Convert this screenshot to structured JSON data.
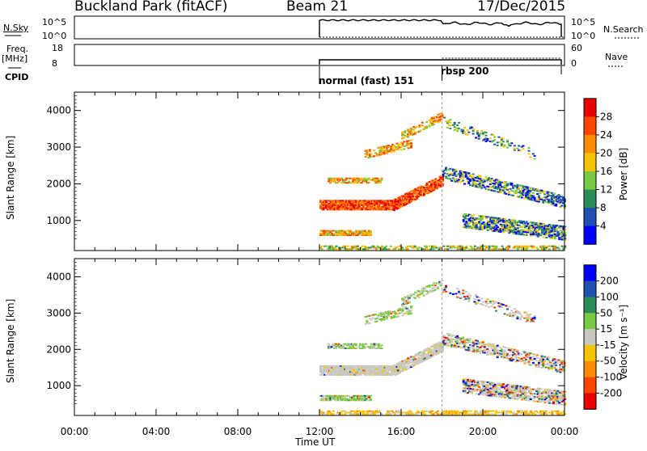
{
  "header": {
    "station": "Buckland Park (fitACF)",
    "beam": "Beam 21",
    "date": "17/Dec/2015"
  },
  "top_panels": {
    "nsky_label": "N.Sky",
    "nsky_ticks": [
      "10^5",
      "10^0"
    ],
    "nsearch_label": "N.Search",
    "nsearch_ticks": [
      "10^5",
      "10^0"
    ],
    "freq_label": "Freq.",
    "freq_unit": "[MHz]",
    "freq_ticks": [
      "18",
      "8"
    ],
    "nave_label": "Nave",
    "nave_ticks": [
      "60",
      "0"
    ],
    "cpid_label": "CPID",
    "cpid_modes": [
      {
        "name": "normal (fast) 151",
        "start_hour": 12.0
      },
      {
        "name": "rbsp 200",
        "start_hour": 18.0
      }
    ]
  },
  "chart_data": [
    {
      "type": "heatmap",
      "name": "Power",
      "ylabel": "Slant Range [km]",
      "xlabel": "",
      "xlim_hours": [
        0,
        24
      ],
      "ylim": [
        180,
        4500
      ],
      "ytick_labels": [
        "1000",
        "2000",
        "3000",
        "4000"
      ],
      "colorbar_label": "Power [dB]",
      "colorbar_ticks": [
        "4",
        "8",
        "12",
        "16",
        "20",
        "24",
        "28"
      ],
      "colorbar_colors": [
        "#0000ff",
        "#1f4fb0",
        "#2e8b57",
        "#7ac943",
        "#f5c400",
        "#ff8c00",
        "#ff4500",
        "#e60000"
      ],
      "data_start_hour": 12.0
    },
    {
      "type": "heatmap",
      "name": "Velocity",
      "ylabel": "Slant Range [km]",
      "xlabel": "Time UT",
      "xlim_hours": [
        0,
        24
      ],
      "ylim": [
        180,
        4500
      ],
      "ytick_labels": [
        "1000",
        "2000",
        "3000",
        "4000"
      ],
      "xtick_labels": [
        "00:00",
        "04:00",
        "08:00",
        "12:00",
        "16:00",
        "20:00",
        "00:00"
      ],
      "colorbar_label": "Velocity [m s⁻¹]",
      "colorbar_ticks": [
        "200",
        "100",
        "50",
        "15",
        "-15",
        "-50",
        "-100",
        "-200"
      ],
      "colorbar_colors": [
        "#0000ff",
        "#1f4fb0",
        "#2e8b57",
        "#7ac943",
        "#c8c8c0",
        "#f5c400",
        "#ff8c00",
        "#ff4500",
        "#e60000"
      ],
      "data_start_hour": 12.0
    }
  ]
}
